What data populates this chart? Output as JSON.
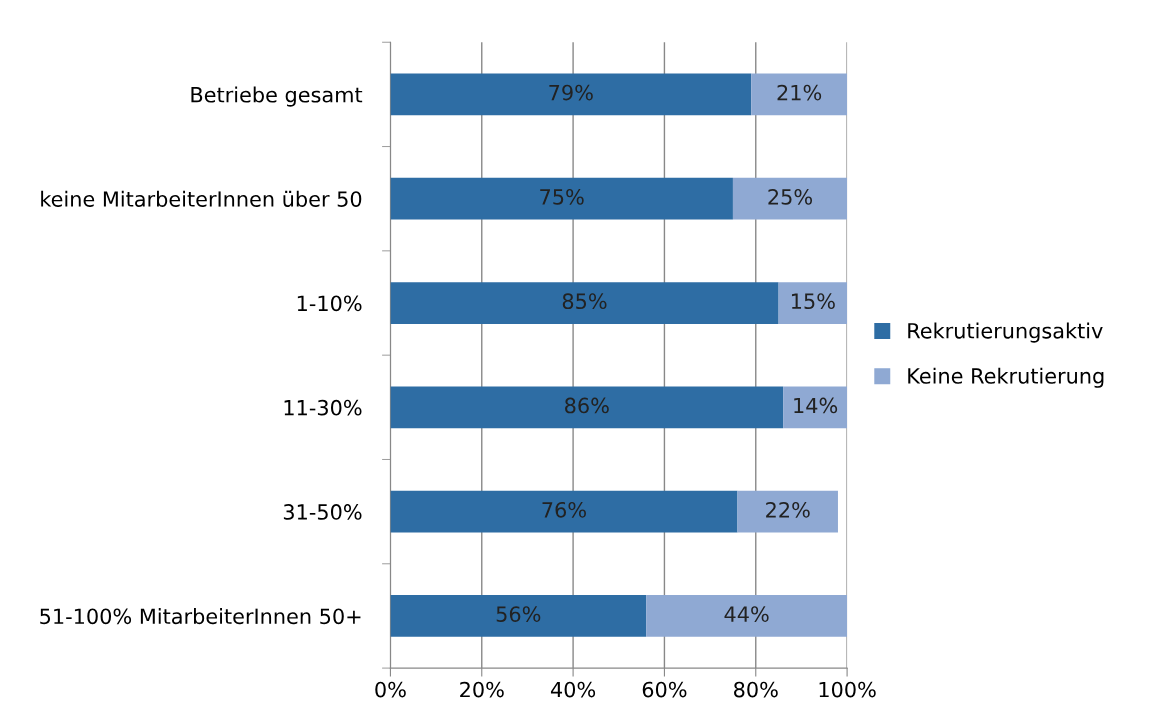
{
  "chart_data": {
    "type": "bar",
    "orientation": "horizontal",
    "stacked": true,
    "categories": [
      "Betriebe gesamt",
      "keine MitarbeiterInnen über 50",
      "1-10%",
      "11-30%",
      "31-50%",
      "51-100% MitarbeiterInnen 50+"
    ],
    "series": [
      {
        "name": "Rekrutierungsaktiv",
        "color": "#2e6da4",
        "values": [
          79,
          75,
          85,
          86,
          76,
          56
        ],
        "value_labels": [
          "79%",
          "75%",
          "85%",
          "86%",
          "76%",
          "56%"
        ]
      },
      {
        "name": "Keine Rekrutierung",
        "color": "#8fa9d3",
        "values": [
          21,
          25,
          15,
          14,
          22,
          44
        ],
        "value_labels": [
          "21%",
          "25%",
          "15%",
          "14%",
          "22%",
          "44%"
        ]
      }
    ],
    "xlim": [
      0,
      100
    ],
    "xticks": [
      {
        "value": 0,
        "label": "0%"
      },
      {
        "value": 20,
        "label": "20%"
      },
      {
        "value": 40,
        "label": "40%"
      },
      {
        "value": 60,
        "label": "60%"
      },
      {
        "value": 80,
        "label": "80%"
      },
      {
        "value": 100,
        "label": "100%"
      }
    ],
    "grid": "x",
    "legend": "right"
  }
}
